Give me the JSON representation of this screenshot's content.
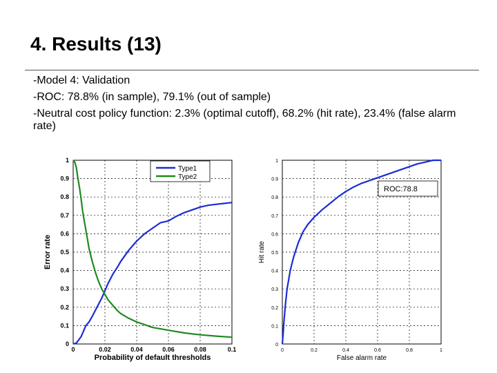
{
  "slide": {
    "title": "4. Results (13)",
    "bullets": [
      "-Model 4: Validation",
      "-ROC: 78.8% (in sample), 79.1% (out of sample)",
      "-Neutral cost policy function: 2.3% (optimal cutoff), 68.2% (hit rate), 23.4% (false alarm rate)"
    ]
  },
  "chart_data": [
    {
      "type": "line",
      "xlabel": "Probability of default thresholds",
      "ylabel": "Error rate",
      "xlim": [
        0,
        0.1
      ],
      "ylim": [
        0,
        1
      ],
      "xticks": [
        "0",
        "0.02",
        "0.04",
        "0.06",
        "0.08",
        "0.1"
      ],
      "yticks": [
        "0",
        "0.1",
        "0.2",
        "0.3",
        "0.4",
        "0.5",
        "0.6",
        "0.7",
        "0.8",
        "0.9",
        "1"
      ],
      "grid": true,
      "legend": "top-right",
      "series": [
        {
          "name": "Type1",
          "color": "#1a2bd6",
          "x": [
            0,
            0.002,
            0.005,
            0.008,
            0.01,
            0.012,
            0.015,
            0.018,
            0.02,
            0.022,
            0.025,
            0.028,
            0.03,
            0.035,
            0.04,
            0.045,
            0.05,
            0.055,
            0.06,
            0.065,
            0.07,
            0.075,
            0.08,
            0.085,
            0.09,
            0.095,
            0.1
          ],
          "y": [
            0,
            0.005,
            0.04,
            0.1,
            0.12,
            0.15,
            0.2,
            0.25,
            0.29,
            0.33,
            0.38,
            0.42,
            0.45,
            0.51,
            0.56,
            0.6,
            0.63,
            0.66,
            0.67,
            0.695,
            0.715,
            0.73,
            0.745,
            0.755,
            0.76,
            0.765,
            0.77
          ]
        },
        {
          "name": "Type2",
          "color": "#1f8a1f",
          "x": [
            0,
            0.001,
            0.002,
            0.003,
            0.004,
            0.005,
            0.006,
            0.008,
            0.01,
            0.012,
            0.014,
            0.016,
            0.018,
            0.02,
            0.022,
            0.025,
            0.028,
            0.03,
            0.035,
            0.04,
            0.045,
            0.05,
            0.06,
            0.07,
            0.08,
            0.09,
            0.1
          ],
          "y": [
            1,
            0.99,
            0.96,
            0.9,
            0.85,
            0.79,
            0.72,
            0.62,
            0.52,
            0.45,
            0.39,
            0.34,
            0.3,
            0.27,
            0.24,
            0.21,
            0.18,
            0.165,
            0.14,
            0.12,
            0.105,
            0.09,
            0.075,
            0.06,
            0.05,
            0.043,
            0.037
          ]
        }
      ]
    },
    {
      "type": "line",
      "xlabel": "False alarm rate",
      "ylabel": "Hit rate",
      "xlim": [
        0,
        1
      ],
      "ylim": [
        0,
        1
      ],
      "xticks": [
        "0",
        "0.2",
        "0.4",
        "0.6",
        "0.8",
        "1"
      ],
      "yticks": [
        "0",
        "0.1",
        "0.2",
        "0.3",
        "0.4",
        "0.5",
        "0.6",
        "0.7",
        "0.8",
        "0.9",
        "1"
      ],
      "grid": true,
      "legend": "top-right",
      "annotation": "ROC:78.8",
      "series": [
        {
          "color": "#1a2bd6",
          "x": [
            0,
            0.005,
            0.01,
            0.02,
            0.03,
            0.05,
            0.07,
            0.1,
            0.13,
            0.16,
            0.2,
            0.25,
            0.3,
            0.35,
            0.4,
            0.45,
            0.5,
            0.55,
            0.6,
            0.65,
            0.7,
            0.75,
            0.8,
            0.85,
            0.9,
            0.95,
            1
          ],
          "y": [
            0,
            0.05,
            0.12,
            0.22,
            0.3,
            0.4,
            0.47,
            0.55,
            0.61,
            0.65,
            0.69,
            0.73,
            0.765,
            0.8,
            0.83,
            0.855,
            0.875,
            0.89,
            0.905,
            0.92,
            0.935,
            0.95,
            0.965,
            0.98,
            0.99,
            1,
            1
          ]
        }
      ]
    }
  ]
}
